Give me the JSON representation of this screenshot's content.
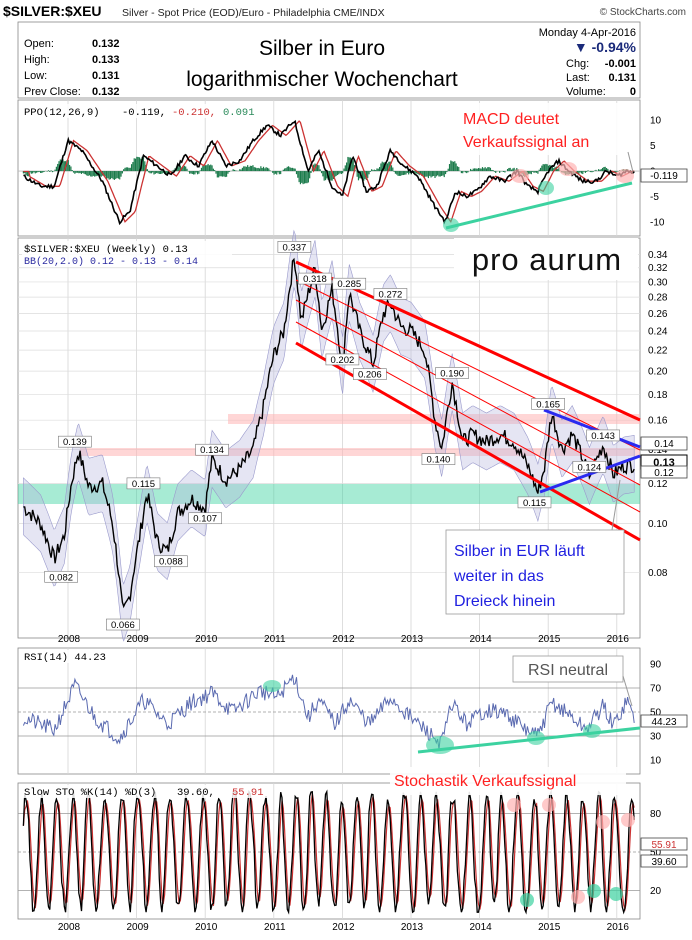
{
  "header": {
    "symbol": "$SILVER:$XEU",
    "description": "Silver - Spot Price (EOD)/Euro - Philadelphia  CME/INDX",
    "source": "© StockCharts.com",
    "date": "Monday  4-Apr-2016",
    "change_pct": "▼ -0.94%",
    "open_label": "Open:",
    "open": "0.132",
    "high_label": "High:",
    "high": "0.133",
    "low_label": "Low:",
    "low": "0.131",
    "prev_label": "Prev Close:",
    "prev": "0.132",
    "chg_label": "Chg:",
    "chg": "-0.001",
    "last_label": "Last:",
    "last": "0.131",
    "vol_label": "Volume:",
    "vol": "0",
    "title_line1": "Silber in Euro",
    "title_line2": "logarithmischer Wochenchart",
    "logo": "pro aurum"
  },
  "colors": {
    "grid": "#c8c8c8",
    "price": "#000000",
    "bb": "#b4b4dc",
    "red_channel": "#ff0000",
    "blue_triangle": "#2a2af0",
    "green_band": "#3cd2a0",
    "pink_band": "#ffb4b4",
    "annot_red": "#ff2020",
    "annot_blue": "#2020e0",
    "macd_line": "#000000",
    "macd_signal": "#cc3333",
    "macd_hist": "#1a7a4a"
  },
  "ppo": {
    "legend": "PPO(12,26,9)",
    "v1": "-0.119,",
    "v2": "-0.210,",
    "v3": "0.091",
    "last": "-0.119",
    "ticks": [
      "10",
      "5",
      "0",
      "-5",
      "-10"
    ],
    "annotation_line1": "MACD deutet",
    "annotation_line2": "Verkaufssignal an"
  },
  "price_panel": {
    "legend1": "$SILVER:$XEU (Weekly) 0.13",
    "legend2": "BB(20,2.0) 0.12 - 0.13 - 0.14",
    "ticks": [
      "0.34",
      "0.32",
      "0.30",
      "0.28",
      "0.26",
      "0.24",
      "0.22",
      "0.20",
      "0.18",
      "0.16",
      "0.14",
      "0.12",
      "0.10",
      "0.08"
    ],
    "last_badge": "0.13",
    "band_badges": [
      "0.14",
      "0.12"
    ],
    "point_labels": [
      "0.337",
      "0.318",
      "0.285",
      "0.272",
      "0.202",
      "0.206",
      "0.190",
      "0.165",
      "0.143",
      "0.140",
      "0.124",
      "0.115",
      "0.139",
      "0.134",
      "0.115",
      "0.107",
      "0.088",
      "0.082",
      "0.066"
    ],
    "annotation_line1": "Silber in EUR läuft",
    "annotation_line2": "weiter in das",
    "annotation_line3": "Dreieck hinein"
  },
  "years": [
    "2008",
    "2009",
    "2010",
    "2011",
    "2012",
    "2013",
    "2014",
    "2015",
    "2016"
  ],
  "rsi": {
    "legend": "RSI(14) 44.23",
    "last": "44.23",
    "ticks": [
      "90",
      "70",
      "50",
      "30",
      "10"
    ],
    "annotation": "RSI neutral"
  },
  "sto": {
    "legend": "Slow STO %K(14) %D(3)",
    "v1": "39.60,",
    "v2": "55.91",
    "last_k": "39.60",
    "last_d": "55.91",
    "ticks": [
      "80",
      "50",
      "20"
    ],
    "annotation": "Stochastik Verkaufssignal"
  },
  "chart_data": {
    "type": "line",
    "title": "Silber in Euro logarithmischer Wochenchart",
    "ylabel": "",
    "log_scale": true,
    "ylim": [
      0.06,
      0.35
    ],
    "x": [
      "2008",
      "2008.5",
      "2009",
      "2009.25",
      "2009.5",
      "2010",
      "2010.5",
      "2011",
      "2011.3",
      "2011.5",
      "2012",
      "2012.5",
      "2013",
      "2013.5",
      "2014",
      "2014.5",
      "2015",
      "2015.3",
      "2015.6",
      "2015.9",
      "2016.25"
    ],
    "series": [
      {
        "values": [
          0.105,
          0.139,
          0.115,
          0.066,
          0.088,
          0.115,
          0.134,
          0.22,
          0.337,
          0.318,
          0.285,
          0.206,
          0.272,
          0.14,
          0.19,
          0.14,
          0.115,
          0.165,
          0.124,
          0.143,
          0.131
        ]
      }
    ],
    "annotated_points": [
      {
        "x": "2007.9",
        "y": 0.082
      },
      {
        "x": "2008.1",
        "y": 0.139
      },
      {
        "x": "2008.8",
        "y": 0.066
      },
      {
        "x": "2009.1",
        "y": 0.115
      },
      {
        "x": "2009.5",
        "y": 0.088
      },
      {
        "x": "2010.0",
        "y": 0.107
      },
      {
        "x": "2010.1",
        "y": 0.134
      },
      {
        "x": "2011.3",
        "y": 0.337
      },
      {
        "x": "2011.6",
        "y": 0.318
      },
      {
        "x": "2012.1",
        "y": 0.285
      },
      {
        "x": "2012.0",
        "y": 0.202
      },
      {
        "x": "2012.4",
        "y": 0.206
      },
      {
        "x": "2012.7",
        "y": 0.272
      },
      {
        "x": "2013.4",
        "y": 0.14
      },
      {
        "x": "2013.6",
        "y": 0.19
      },
      {
        "x": "2014.8",
        "y": 0.115
      },
      {
        "x": "2015.0",
        "y": 0.165
      },
      {
        "x": "2015.6",
        "y": 0.124
      },
      {
        "x": "2015.8",
        "y": 0.143
      }
    ]
  }
}
